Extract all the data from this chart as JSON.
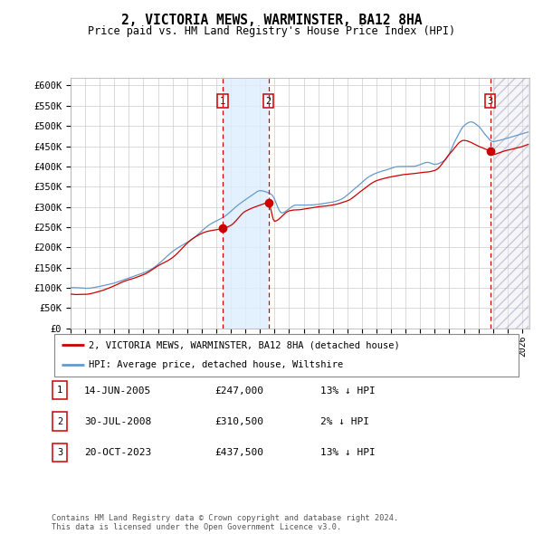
{
  "title": "2, VICTORIA MEWS, WARMINSTER, BA12 8HA",
  "subtitle": "Price paid vs. HM Land Registry's House Price Index (HPI)",
  "xlim_start": 1995.0,
  "xlim_end": 2026.5,
  "ylim": [
    0,
    620000
  ],
  "yticks": [
    0,
    50000,
    100000,
    150000,
    200000,
    250000,
    300000,
    350000,
    400000,
    450000,
    500000,
    550000,
    600000
  ],
  "ytick_labels": [
    "£0",
    "£50K",
    "£100K",
    "£150K",
    "£200K",
    "£250K",
    "£300K",
    "£350K",
    "£400K",
    "£450K",
    "£500K",
    "£550K",
    "£600K"
  ],
  "xtick_years": [
    1995,
    1996,
    1997,
    1998,
    1999,
    2000,
    2001,
    2002,
    2003,
    2004,
    2005,
    2006,
    2007,
    2008,
    2009,
    2010,
    2011,
    2012,
    2013,
    2014,
    2015,
    2016,
    2017,
    2018,
    2019,
    2020,
    2021,
    2022,
    2023,
    2024,
    2025,
    2026
  ],
  "sale1_x": 2005.45,
  "sale1_y": 247000,
  "sale1_label": "1",
  "sale2_x": 2008.58,
  "sale2_y": 310500,
  "sale2_label": "2",
  "sale3_x": 2023.8,
  "sale3_y": 437500,
  "sale3_label": "3",
  "hatch_start": 2024.0,
  "legend_entry1": "2, VICTORIA MEWS, WARMINSTER, BA12 8HA (detached house)",
  "legend_entry2": "HPI: Average price, detached house, Wiltshire",
  "table_rows": [
    [
      "1",
      "14-JUN-2005",
      "£247,000",
      "13% ↓ HPI"
    ],
    [
      "2",
      "30-JUL-2008",
      "£310,500",
      "2% ↓ HPI"
    ],
    [
      "3",
      "20-OCT-2023",
      "£437,500",
      "13% ↓ HPI"
    ]
  ],
  "footer": "Contains HM Land Registry data © Crown copyright and database right 2024.\nThis data is licensed under the Open Government Licence v3.0.",
  "red_color": "#cc0000",
  "blue_color": "#6699cc",
  "shade_color": "#ddeeff",
  "bg_color": "#ffffff",
  "grid_color": "#cccccc",
  "hpi_anchors_x": [
    1995.0,
    1996.0,
    1997.5,
    1999.0,
    2000.5,
    2002.0,
    2003.5,
    2004.5,
    2005.5,
    2006.5,
    2007.5,
    2008.0,
    2008.8,
    2009.5,
    2010.5,
    2011.5,
    2012.5,
    2013.5,
    2014.5,
    2015.5,
    2016.5,
    2017.5,
    2018.5,
    2019.5,
    2020.0,
    2020.7,
    2021.5,
    2022.0,
    2022.5,
    2023.0,
    2023.5,
    2024.0,
    2024.5,
    2025.0,
    2026.0
  ],
  "hpi_anchors_y": [
    100000,
    100000,
    108000,
    125000,
    145000,
    190000,
    225000,
    255000,
    275000,
    305000,
    330000,
    340000,
    330000,
    285000,
    305000,
    305000,
    308000,
    318000,
    345000,
    375000,
    390000,
    400000,
    400000,
    410000,
    405000,
    415000,
    470000,
    500000,
    510000,
    500000,
    478000,
    462000,
    465000,
    470000,
    480000
  ],
  "red_anchors_x": [
    1995.0,
    1996.0,
    1997.0,
    1998.0,
    1999.0,
    2000.0,
    2001.0,
    2002.0,
    2003.0,
    2004.0,
    2005.0,
    2005.45,
    2006.0,
    2007.0,
    2008.0,
    2008.58,
    2009.0,
    2010.0,
    2011.0,
    2012.0,
    2013.0,
    2014.0,
    2015.0,
    2016.0,
    2017.0,
    2018.0,
    2019.0,
    2020.0,
    2021.0,
    2022.0,
    2023.0,
    2023.8,
    2024.0,
    2024.5,
    2025.0,
    2026.0
  ],
  "red_anchors_y": [
    85000,
    84000,
    92000,
    105000,
    120000,
    133000,
    155000,
    175000,
    210000,
    235000,
    244000,
    247000,
    255000,
    290000,
    305000,
    310500,
    265000,
    290000,
    295000,
    300000,
    305000,
    315000,
    340000,
    365000,
    375000,
    380000,
    385000,
    390000,
    430000,
    465000,
    450000,
    437500,
    430000,
    435000,
    440000,
    450000
  ]
}
